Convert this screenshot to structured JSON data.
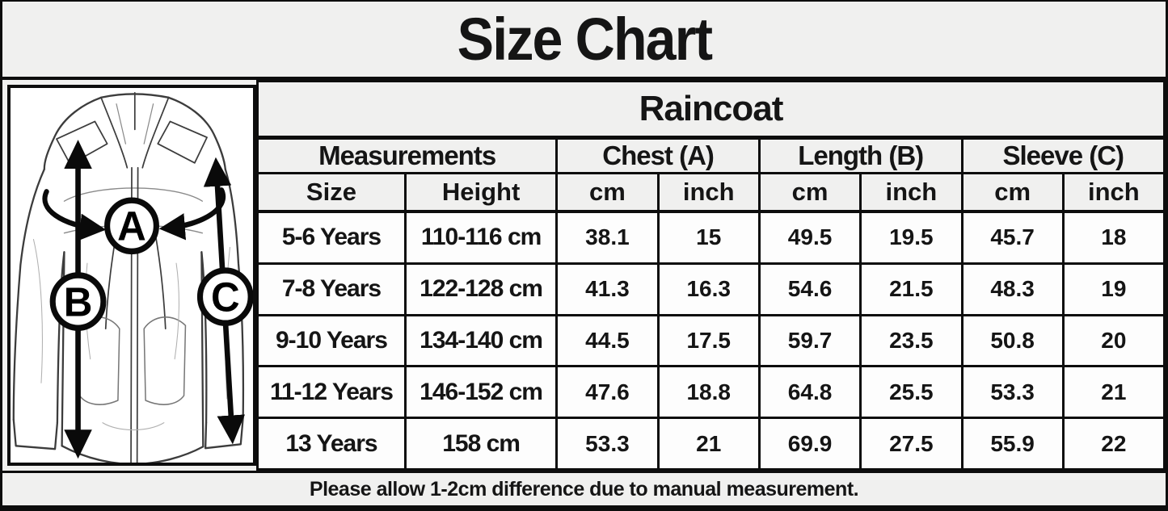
{
  "title": "Size Chart",
  "product_name": "Raincoat",
  "diagram": {
    "labels": {
      "a": "A",
      "b": "B",
      "c": "C"
    }
  },
  "table": {
    "group_headers": {
      "measurements": "Measurements",
      "chest": "Chest (A)",
      "length": "Length (B)",
      "sleeve": "Sleeve (C)"
    },
    "sub_headers": [
      "Size",
      "Height",
      "cm",
      "inch",
      "cm",
      "inch",
      "cm",
      "inch"
    ],
    "rows": [
      [
        "5-6 Years",
        "110-116 cm",
        "38.1",
        "15",
        "49.5",
        "19.5",
        "45.7",
        "18"
      ],
      [
        "7-8 Years",
        "122-128 cm",
        "41.3",
        "16.3",
        "54.6",
        "21.5",
        "48.3",
        "19"
      ],
      [
        "9-10 Years",
        "134-140 cm",
        "44.5",
        "17.5",
        "59.7",
        "23.5",
        "50.8",
        "20"
      ],
      [
        "11-12 Years",
        "146-152 cm",
        "47.6",
        "18.8",
        "64.8",
        "25.5",
        "53.3",
        "21"
      ],
      [
        "13 Years",
        "158 cm",
        "53.3",
        "21",
        "69.9",
        "27.5",
        "55.9",
        "22"
      ]
    ]
  },
  "footer_note": "Please allow 1-2cm difference due to manual measurement.",
  "colors": {
    "background": "#f0f0ef",
    "cell": "#fdfdfd",
    "border": "#0d0d0d",
    "text": "#151515"
  }
}
